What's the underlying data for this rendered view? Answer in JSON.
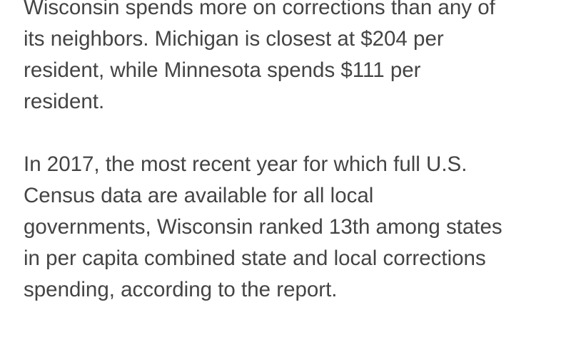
{
  "article": {
    "paragraphs": [
      {
        "lines": [
          "Wisconsin spends more on corrections than any of",
          "its neighbors. Michigan is closest at $204 per",
          "resident, while Minnesota spends $111 per",
          "resident."
        ]
      },
      {
        "lines": [
          "In 2017, the most recent year for which full U.S.",
          "Census data are available for all local",
          "governments, Wisconsin ranked 13th among states",
          "in per capita combined state and local corrections",
          "spending, according to the report."
        ]
      }
    ],
    "text_color": "#444444"
  }
}
